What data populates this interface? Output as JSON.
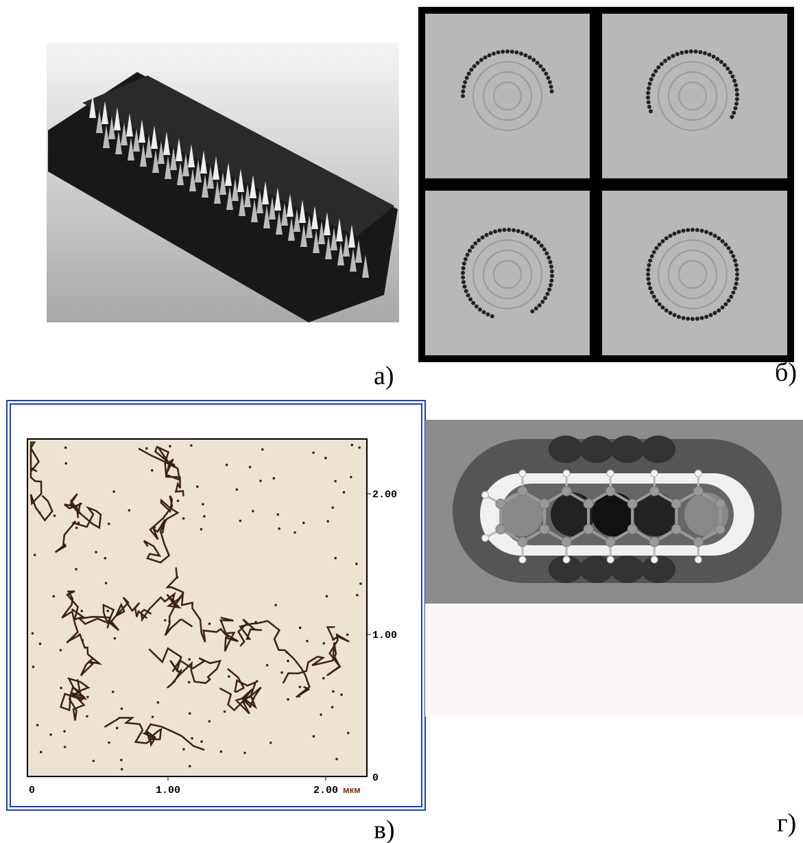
{
  "labels": {
    "a": "а)",
    "b": "б)",
    "c": "в)",
    "d": "г)"
  },
  "afm_axis": {
    "x_ticks": [
      "0",
      "1.00",
      "2.00"
    ],
    "x_unit": "мкм",
    "y_ticks": [
      "2.00",
      "1.00",
      "0"
    ]
  }
}
